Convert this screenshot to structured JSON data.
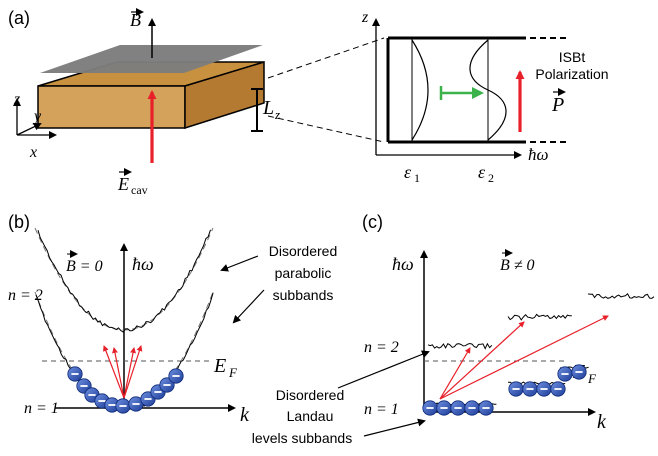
{
  "panel_a": {
    "label": "(a)",
    "b_field": "B",
    "lz_label": "L",
    "lz_sub": "z",
    "axis_z": "z",
    "axis_y": "y",
    "axis_x": "x",
    "ecav_label": "E",
    "ecav_sub": "cav",
    "inset_z": "z",
    "inset_hw": "ħω",
    "eps1": "ε",
    "eps1_sub": "1",
    "eps2": "ε",
    "eps2_sub": "2",
    "isbt_line1": "ISBt",
    "isbt_line2": "Polarization",
    "p_label": "P"
  },
  "panel_b": {
    "label": "(b)",
    "b_eq": "B = 0",
    "hw": "ħω",
    "n2": "n = 2",
    "n1": "n = 1",
    "ef": "E",
    "ef_sub": "F",
    "k": "k",
    "disordered1": "Disordered",
    "disordered2": "parabolic",
    "disordered3": "subbands"
  },
  "panel_c": {
    "label": "(c)",
    "hw": "ħω",
    "b_neq": "B ≠ 0",
    "n2": "n = 2",
    "n1": "n = 1",
    "ef": "E",
    "ef_sub": "F",
    "k": "k",
    "landau1": "Disordered",
    "landau2": "Landau",
    "landau3": "levels subbands"
  },
  "colors": {
    "slab_front": "#d2a05a",
    "slab_top": "#c58a3c",
    "plate": "#7a7a7a",
    "arrow_red": "#e8202a",
    "arrow_green": "#3cb34a",
    "electron": "#2a4fb5"
  }
}
